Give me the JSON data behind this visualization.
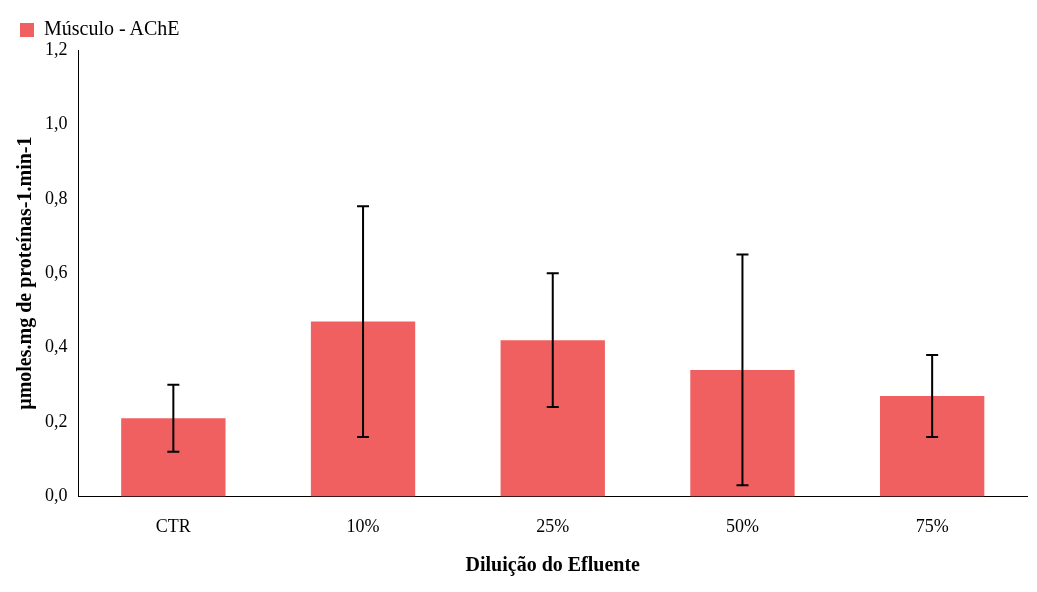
{
  "chart_data": {
    "type": "bar",
    "xlabel": "Diluição do Efluente",
    "ylabel": "µmoles.mg de proteínas-1.min-1",
    "categories": [
      "CTR",
      "10%",
      "25%",
      "50%",
      "75%"
    ],
    "series": [
      {
        "name": "Músculo - AChE",
        "color": "#f06060",
        "values": [
          0.21,
          0.47,
          0.42,
          0.34,
          0.27
        ],
        "errors": [
          0.09,
          0.31,
          0.18,
          0.31,
          0.11
        ]
      }
    ],
    "ylim": [
      0,
      1.2
    ],
    "yticks": [
      {
        "value": 0,
        "label": "0,0"
      },
      {
        "value": 0.2,
        "label": "0,2"
      },
      {
        "value": 0.4,
        "label": "0,4"
      },
      {
        "value": 0.6,
        "label": "0,6"
      },
      {
        "value": 0.8,
        "label": "0,8"
      },
      {
        "value": 1.0,
        "label": "1,0"
      },
      {
        "value": 1.2,
        "label": "1,2"
      }
    ],
    "grid": false,
    "legend": "top left"
  }
}
